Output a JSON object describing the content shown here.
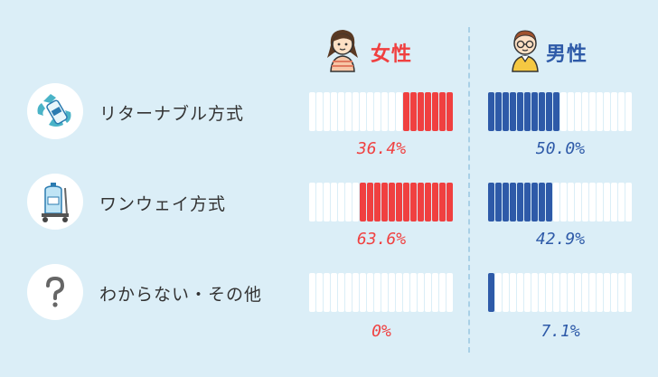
{
  "header": {
    "female_label": "女性",
    "male_label": "男性",
    "female_color": "#f04040",
    "male_color": "#2e5aa8"
  },
  "rows": [
    {
      "label": "リターナブル方式",
      "icon": "recycle-bottle-icon",
      "female": "36.4%",
      "male": "50.0%"
    },
    {
      "label": "ワンウェイ方式",
      "icon": "water-jug-cart-icon",
      "female": "63.6%",
      "male": "42.9%"
    },
    {
      "label": "わからない・その他",
      "icon": "question-mark-icon",
      "female": "0%",
      "male": "7.1%"
    }
  ],
  "chart_data": {
    "type": "bar",
    "categories": [
      "リターナブル方式",
      "ワンウェイ方式",
      "わからない・その他"
    ],
    "series": [
      {
        "name": "女性",
        "values": [
          36.4,
          63.6,
          0
        ]
      },
      {
        "name": "男性",
        "values": [
          50.0,
          42.9,
          7.1
        ]
      }
    ],
    "ylim": [
      0,
      100
    ],
    "segments_per_bar": 20
  }
}
